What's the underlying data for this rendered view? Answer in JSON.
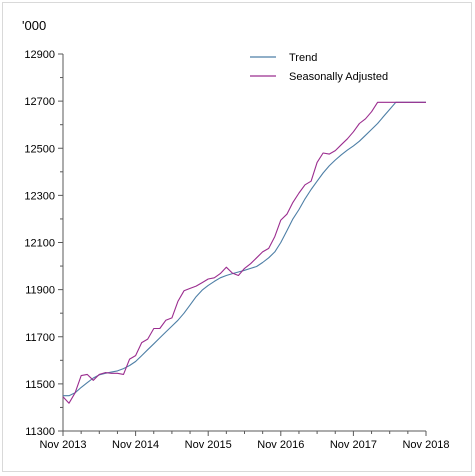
{
  "chart_data": {
    "type": "line",
    "unit_label": "'000",
    "x_tick_labels": [
      "Nov 2013",
      "Nov 2014",
      "Nov 2015",
      "Nov 2016",
      "Nov 2017",
      "Nov 2018"
    ],
    "y_tick_labels": [
      "11300",
      "11500",
      "11700",
      "11900",
      "12100",
      "12300",
      "12500",
      "12700",
      "12900"
    ],
    "ylim": [
      11300,
      12900
    ],
    "x_range_months": [
      0,
      60
    ],
    "minor_tick_interval_months": 3,
    "grid": false,
    "legend_position": "top-right",
    "series": [
      {
        "name": "Trend",
        "color": "#4e7fa6",
        "x": [
          0,
          1,
          2,
          3,
          4,
          5,
          6,
          7,
          8,
          9,
          10,
          11,
          12,
          13,
          14,
          15,
          16,
          17,
          18,
          19,
          20,
          21,
          22,
          23,
          24,
          25,
          26,
          27,
          28,
          29,
          30,
          31,
          32,
          33,
          34,
          35,
          36,
          37,
          38,
          39,
          40,
          41,
          42,
          43,
          44,
          45,
          46,
          47,
          48,
          49,
          50,
          51,
          52,
          53,
          54,
          55,
          56,
          57,
          58,
          59,
          60
        ],
        "values": [
          11450,
          11450,
          11462,
          11485,
          11505,
          11525,
          11538,
          11545,
          11550,
          11555,
          11565,
          11578,
          11595,
          11620,
          11645,
          11670,
          11695,
          11720,
          11745,
          11770,
          11800,
          11835,
          11870,
          11898,
          11918,
          11935,
          11950,
          11960,
          11968,
          11975,
          11982,
          11990,
          11998,
          12015,
          12035,
          12060,
          12100,
          12150,
          12200,
          12240,
          12285,
          12325,
          12360,
          12395,
          12425,
          12450,
          12472,
          12492,
          12510,
          12530,
          12555,
          12580,
          12605,
          12635,
          12665,
          12695,
          12695,
          12695,
          12695,
          12695,
          12695
        ]
      },
      {
        "name": "Seasonally Adjusted",
        "color": "#9b2d8f",
        "x": [
          0,
          1,
          2,
          3,
          4,
          5,
          6,
          7,
          8,
          9,
          10,
          11,
          12,
          13,
          14,
          15,
          16,
          17,
          18,
          19,
          20,
          21,
          22,
          23,
          24,
          25,
          26,
          27,
          28,
          29,
          30,
          31,
          32,
          33,
          34,
          35,
          36,
          37,
          38,
          39,
          40,
          41,
          42,
          43,
          44,
          45,
          46,
          47,
          48,
          49,
          50,
          51,
          52,
          53,
          54,
          55,
          56,
          57,
          58,
          59,
          60
        ],
        "values": [
          11445,
          11418,
          11462,
          11535,
          11540,
          11515,
          11540,
          11548,
          11545,
          11545,
          11540,
          11605,
          11620,
          11675,
          11690,
          11735,
          11735,
          11770,
          11780,
          11850,
          11895,
          11905,
          11915,
          11930,
          11945,
          11950,
          11968,
          11995,
          11970,
          11960,
          11990,
          12010,
          12035,
          12060,
          12075,
          12125,
          12195,
          12220,
          12270,
          12310,
          12345,
          12360,
          12440,
          12480,
          12475,
          12490,
          12515,
          12540,
          12570,
          12605,
          12625,
          12655,
          12695,
          12695,
          12695,
          12695,
          12695,
          12695,
          12695,
          12695,
          12695
        ]
      }
    ]
  }
}
